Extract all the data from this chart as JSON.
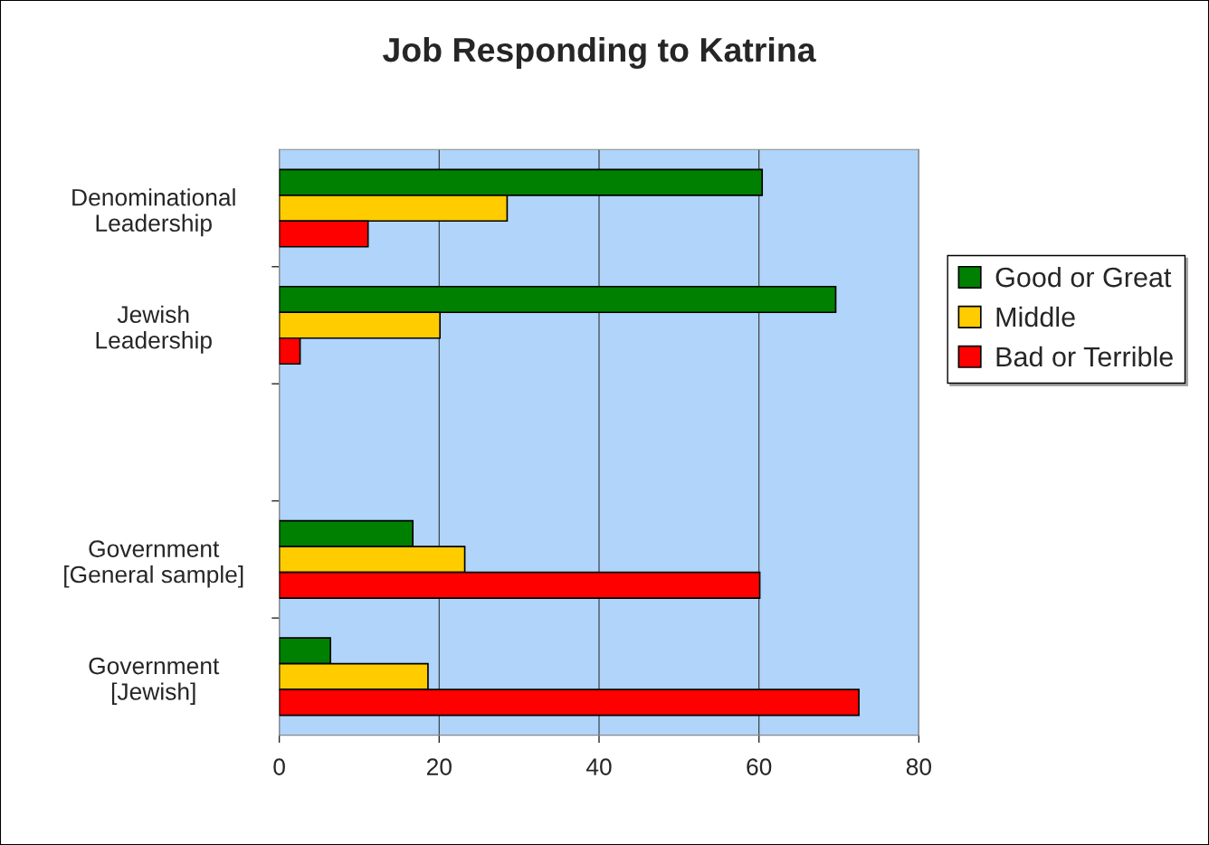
{
  "chart_data": {
    "type": "bar",
    "orientation": "horizontal",
    "title": "Job Responding to Katrina",
    "categories": [
      "Denominational\nLeadership",
      "Jewish\nLeadership",
      null,
      "Government\n[General sample]",
      "Government\n[Jewish]"
    ],
    "series": [
      {
        "name": "Good or Great",
        "color": "#008000",
        "values": [
          60.4,
          69.6,
          null,
          16.7,
          6.4
        ]
      },
      {
        "name": "Middle",
        "color": "#ffcc00",
        "values": [
          28.5,
          20.1,
          null,
          23.2,
          18.6
        ]
      },
      {
        "name": "Bad or Terrible",
        "color": "#ff0000",
        "values": [
          11.1,
          2.6,
          null,
          60.1,
          72.5
        ]
      }
    ],
    "xlim": [
      0,
      80
    ],
    "xticks": [
      0,
      20,
      40,
      60,
      80
    ],
    "grid": "x",
    "legend": "right"
  }
}
